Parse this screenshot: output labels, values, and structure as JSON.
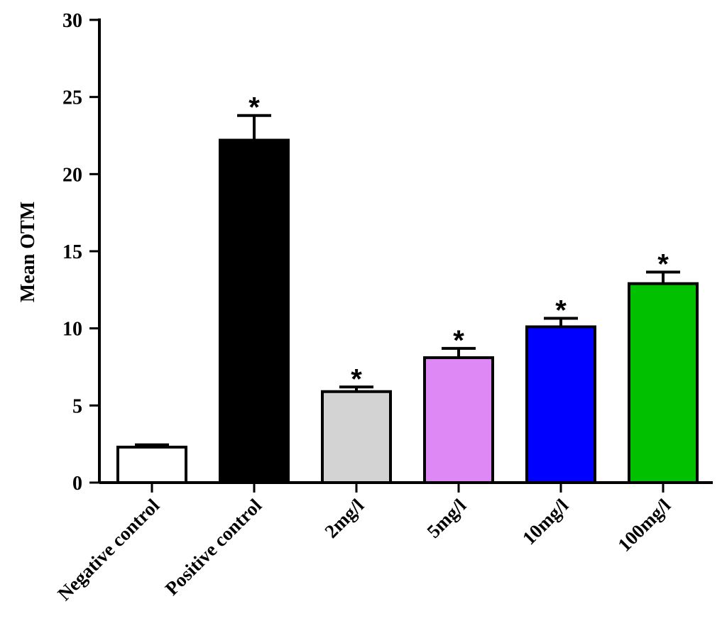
{
  "chart_data": {
    "type": "bar",
    "title": "",
    "xlabel": "",
    "ylabel": "Mean OTM",
    "ylim": [
      0,
      30
    ],
    "yticks": [
      0,
      5,
      10,
      15,
      20,
      25,
      30
    ],
    "categories": [
      "Negative control",
      "Positive control",
      "2mg/l",
      "5mg/l",
      "10mg/l",
      "100mg/l"
    ],
    "values": [
      2.3,
      22.2,
      5.9,
      8.1,
      10.1,
      12.9
    ],
    "errors": [
      0.15,
      1.6,
      0.3,
      0.6,
      0.55,
      0.75
    ],
    "significance": [
      "",
      "*",
      "*",
      "*",
      "*",
      "*"
    ],
    "colors": [
      "#ffffff",
      "#000000",
      "#d3d3d3",
      "#dd88f5",
      "#0000ff",
      "#00c000"
    ]
  }
}
